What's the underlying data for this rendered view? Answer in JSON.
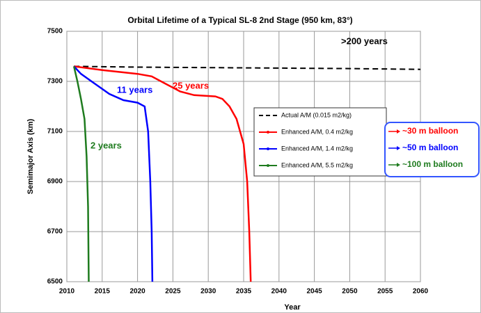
{
  "chart_data": {
    "type": "line",
    "title": "Orbital Lifetime of a Typical SL-8 2nd Stage (950 km, 83°)",
    "x_label": "Year",
    "y_label": "Semimajor Axis (km)",
    "xlim": [
      2010,
      2060
    ],
    "xticks": [
      2010,
      2015,
      2020,
      2025,
      2030,
      2035,
      2040,
      2045,
      2050,
      2055,
      2060
    ],
    "ylim": [
      6500,
      7500
    ],
    "yticks": [
      6500,
      6700,
      6900,
      7100,
      7300,
      7500
    ],
    "grid": true,
    "series": [
      {
        "name": "Actual A/M (0.015 m2/kg)",
        "color": "#000000",
        "style": "dashed",
        "x": [
          2011,
          2020,
          2030,
          2040,
          2050,
          2060
        ],
        "values": [
          7360,
          7357,
          7355,
          7353,
          7351,
          7348
        ]
      },
      {
        "name": "Enhanced A/M,  0.4 m2/kg",
        "color": "#ff0000",
        "style": "solid",
        "x": [
          2011,
          2015,
          2020,
          2022,
          2024,
          2026,
          2028,
          2031,
          2032,
          2033,
          2034,
          2035,
          2035.5,
          2035.8,
          2036
        ],
        "values": [
          7360,
          7345,
          7330,
          7320,
          7290,
          7260,
          7245,
          7240,
          7230,
          7200,
          7150,
          7050,
          6900,
          6700,
          6500
        ]
      },
      {
        "name": "Enhanced A/M,  1.4 m2/kg",
        "color": "#0000ff",
        "style": "solid",
        "x": [
          2011,
          2012,
          2014,
          2016,
          2018,
          2020,
          2021,
          2021.5,
          2021.8,
          2022,
          2022.1
        ],
        "values": [
          7360,
          7330,
          7290,
          7250,
          7225,
          7215,
          7200,
          7100,
          6900,
          6700,
          6500
        ]
      },
      {
        "name": "Enhanced A/M,  5.5 m2/kg",
        "color": "#1e7b1e",
        "style": "solid",
        "x": [
          2011,
          2011.5,
          2012,
          2012.5,
          2012.8,
          2013,
          2013.1
        ],
        "values": [
          7360,
          7300,
          7230,
          7150,
          7000,
          6800,
          6500
        ]
      }
    ],
    "annotations": [
      {
        "text": ">200 years",
        "color": "#000000"
      },
      {
        "text": "25 years",
        "color": "#ff0000"
      },
      {
        "text": "11 years",
        "color": "#0000ff"
      },
      {
        "text": "2 years",
        "color": "#1e7b1e"
      }
    ],
    "callouts": [
      {
        "text": "~30 m balloon",
        "color": "#ff0000"
      },
      {
        "text": "~50 m balloon",
        "color": "#0000ff"
      },
      {
        "text": "~100 m balloon",
        "color": "#1e7b1e"
      }
    ]
  }
}
